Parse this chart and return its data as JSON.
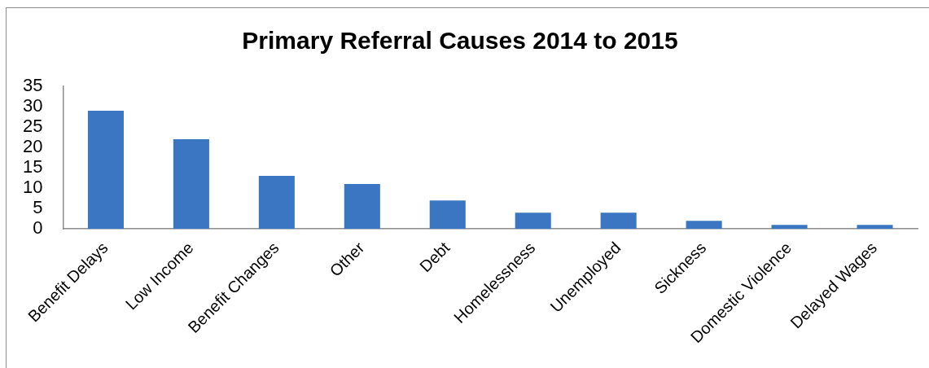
{
  "chart_data": {
    "type": "bar",
    "title": "Primary Referral Causes 2014 to 2015",
    "categories": [
      "Benefit Delays",
      "Low Income",
      "Benefit Changes",
      "Other",
      "Debt",
      "Homelessness",
      "Unemployed",
      "Sickness",
      "Domestic Violence",
      "Delayed Wages"
    ],
    "values": [
      29,
      22,
      13,
      11,
      7,
      4,
      4,
      2,
      1,
      1
    ],
    "color": "#3b76c3",
    "ylim": [
      0,
      35
    ],
    "yticks": [
      0,
      5,
      10,
      15,
      20,
      25,
      30,
      35
    ],
    "grid": false,
    "legend": false
  }
}
